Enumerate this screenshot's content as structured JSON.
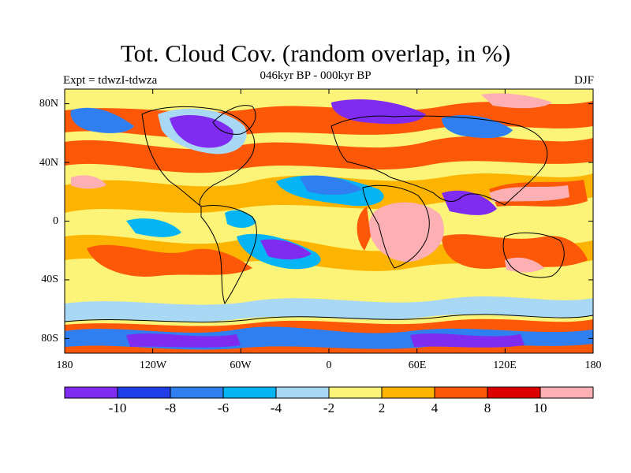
{
  "title": "Tot. Cloud Cov. (random overlap, in %)",
  "subtitle": "046kyr BP - 000kyr BP",
  "experiment_label": "Expt = tdwzI-tdwza",
  "season_label": "DJF",
  "lat_ticks": [
    "80N",
    "40N",
    "0",
    "40S",
    "80S"
  ],
  "lon_ticks": [
    "180",
    "120W",
    "60W",
    "0",
    "60E",
    "120E",
    "180"
  ],
  "colorbar": {
    "colors": [
      "#7f2cf0",
      "#1f3ee8",
      "#2f7ff0",
      "#04b4f4",
      "#a8d8f4",
      "#fcf478",
      "#fcb400",
      "#fc5808",
      "#dc0000",
      "#fcb0b4"
    ],
    "labels": [
      "-10",
      "-8",
      "-6",
      "-4",
      "-2",
      "2",
      "4",
      "8",
      "10"
    ]
  }
}
